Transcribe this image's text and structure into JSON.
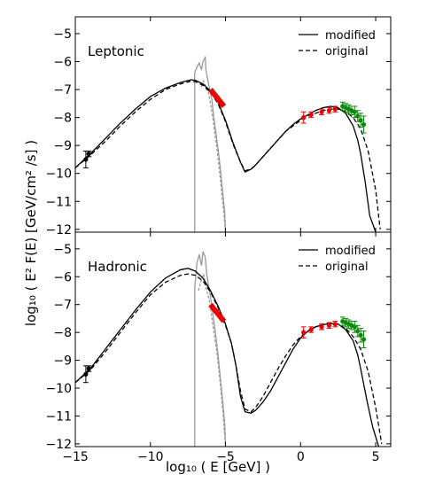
{
  "y_axis_label": "log₁₀ ( E² F(E) [GeV/cm² /s] )",
  "x_axis_label": "log₁₀ ( E [GeV] )",
  "x_ticks": [
    "−15",
    "−10",
    "−5",
    "0",
    "5"
  ],
  "panel_top_y_ticks": [
    "−5",
    "−6",
    "−7",
    "−8",
    "−9",
    "−10",
    "−11",
    "−12"
  ],
  "panel_bottom_y_ticks": [
    "−5",
    "−6",
    "−7",
    "−8",
    "−9",
    "−10",
    "−11",
    "−12"
  ],
  "chart_data": [
    {
      "type": "line",
      "panel_label": "Leptonic",
      "xlim": [
        -15,
        6
      ],
      "ylim": [
        -12.1,
        -4.4
      ],
      "legend_position": "top-right",
      "series": [
        {
          "name": "modified",
          "style": "solid",
          "x": [
            -15,
            -14,
            -13,
            -12,
            -11,
            -10,
            -9,
            -8,
            -7.3,
            -7,
            -6.5,
            -6,
            -5.5,
            -5,
            -4.5,
            -4,
            -3.7,
            -3.3,
            -3,
            -2.5,
            -2,
            -1.5,
            -1,
            -0.5,
            0,
            0.5,
            1,
            1.5,
            2,
            2.5,
            3,
            3.5,
            3.8,
            4,
            4.3,
            4.6,
            5
          ],
          "y": [
            -9.8,
            -9.3,
            -8.75,
            -8.2,
            -7.7,
            -7.25,
            -6.95,
            -6.75,
            -6.65,
            -6.67,
            -6.8,
            -7.05,
            -7.45,
            -8.1,
            -8.9,
            -9.6,
            -9.95,
            -9.85,
            -9.7,
            -9.4,
            -9.1,
            -8.8,
            -8.5,
            -8.25,
            -8.05,
            -7.9,
            -7.75,
            -7.65,
            -7.6,
            -7.65,
            -7.85,
            -8.3,
            -8.8,
            -9.3,
            -10.3,
            -11.5,
            -12.1
          ]
        },
        {
          "name": "original",
          "style": "dashed",
          "x": [
            -15,
            -14,
            -13,
            -12,
            -11,
            -10,
            -9,
            -8,
            -7.3,
            -7,
            -6.5,
            -6,
            -5.5,
            -5,
            -4.5,
            -4,
            -3.7,
            -3.3,
            -3,
            -2.5,
            -2,
            -1.5,
            -1,
            -0.5,
            0,
            0.5,
            1,
            1.5,
            2,
            2.5,
            3,
            3.5,
            4,
            4.5,
            5,
            5.3
          ],
          "y": [
            -9.8,
            -9.35,
            -8.85,
            -8.3,
            -7.8,
            -7.35,
            -7.0,
            -6.8,
            -6.7,
            -6.72,
            -6.85,
            -7.1,
            -7.5,
            -8.15,
            -8.95,
            -9.6,
            -9.9,
            -9.85,
            -9.7,
            -9.4,
            -9.1,
            -8.8,
            -8.5,
            -8.3,
            -8.1,
            -7.95,
            -7.85,
            -7.75,
            -7.7,
            -7.7,
            -7.8,
            -8.0,
            -8.4,
            -9.2,
            -10.6,
            -12.0
          ]
        }
      ],
      "optical_rays": [
        {
          "x": [
            -7.05,
            -7.05,
            -6.9,
            -6.75,
            -6.6,
            -6.5,
            -6.35,
            -6.3,
            -6.2,
            -6.05,
            -5.9,
            -5.8,
            -5.65,
            -5.5,
            -5.35,
            -5.2,
            -5.05,
            -5.0
          ],
          "y": [
            -12.1,
            -6.4,
            -6.2,
            -6.05,
            -6.3,
            -6.0,
            -5.85,
            -6.3,
            -6.6,
            -7.0,
            -7.4,
            -7.9,
            -8.5,
            -9.1,
            -9.8,
            -10.6,
            -11.4,
            -12.1
          ]
        },
        {
          "x": [
            -6.6,
            -6.45,
            -6.3,
            -6.15,
            -6.0,
            -5.85,
            -5.7,
            -5.55,
            -5.4,
            -5.25,
            -5.1,
            -5.0
          ],
          "y": [
            -6.9,
            -6.7,
            -6.95,
            -7.1,
            -7.5,
            -8.0,
            -8.6,
            -9.2,
            -9.9,
            -10.7,
            -11.5,
            -12.1
          ]
        }
      ],
      "data_groups": [
        {
          "color": "#000000",
          "x": [
            -14.3,
            -14.1
          ],
          "y": [
            -9.5,
            -9.3
          ],
          "err": [
            0.3,
            0.1
          ]
        },
        {
          "color": "#ee0000",
          "x": [
            0.2,
            0.7,
            1.4,
            1.9,
            2.3
          ],
          "y": [
            -8.0,
            -7.9,
            -7.8,
            -7.75,
            -7.7
          ],
          "err": [
            0.2,
            0.1,
            0.1,
            0.1,
            0.1
          ]
        },
        {
          "color": "#0b8a0b",
          "x": [
            2.8,
            3.0,
            3.2,
            3.4,
            3.6,
            3.8,
            4.0,
            4.2
          ],
          "y": [
            -7.6,
            -7.65,
            -7.7,
            -7.75,
            -7.8,
            -7.95,
            -8.1,
            -8.25
          ],
          "err": [
            0.15,
            0.15,
            0.15,
            0.15,
            0.2,
            0.2,
            0.25,
            0.3
          ]
        }
      ],
      "xray_bowtie": {
        "x": [
          -6.0,
          -5.1
        ],
        "y": [
          -7.0,
          -7.6
        ]
      }
    },
    {
      "type": "line",
      "panel_label": "Hadronic",
      "xlim": [
        -15,
        6
      ],
      "ylim": [
        -12.1,
        -4.4
      ],
      "legend_position": "top-right",
      "series": [
        {
          "name": "modified",
          "style": "solid",
          "x": [
            -15,
            -14,
            -13,
            -12,
            -11,
            -10,
            -9,
            -8,
            -7.5,
            -7,
            -6.5,
            -6,
            -5.5,
            -5,
            -4.6,
            -4.3,
            -4,
            -3.7,
            -3.3,
            -3,
            -2.5,
            -2,
            -1.5,
            -1,
            -0.5,
            0,
            0.5,
            1,
            1.5,
            2,
            2.5,
            3,
            3.5,
            3.8,
            4,
            4.4,
            4.8,
            5.2
          ],
          "y": [
            -9.8,
            -9.3,
            -8.6,
            -7.9,
            -7.2,
            -6.55,
            -6.05,
            -5.75,
            -5.7,
            -5.8,
            -6.05,
            -6.5,
            -7.05,
            -7.7,
            -8.4,
            -9.2,
            -10.3,
            -10.85,
            -10.9,
            -10.8,
            -10.5,
            -10.1,
            -9.6,
            -9.1,
            -8.6,
            -8.2,
            -7.95,
            -7.8,
            -7.72,
            -7.68,
            -7.7,
            -7.9,
            -8.3,
            -8.8,
            -9.3,
            -10.4,
            -11.4,
            -12.1
          ]
        },
        {
          "name": "original",
          "style": "dashed",
          "x": [
            -15,
            -14,
            -13,
            -12,
            -11,
            -10,
            -9,
            -8,
            -7.5,
            -7,
            -6.5,
            -6,
            -5.5,
            -5,
            -4.6,
            -4.3,
            -4,
            -3.7,
            -3.3,
            -3,
            -2.5,
            -2,
            -1.5,
            -1,
            -0.5,
            0,
            0.5,
            1,
            1.5,
            2,
            2.5,
            3,
            3.5,
            4,
            4.5,
            5,
            5.4
          ],
          "y": [
            -9.8,
            -9.35,
            -8.7,
            -8.0,
            -7.3,
            -6.65,
            -6.2,
            -5.95,
            -5.9,
            -5.95,
            -6.15,
            -6.55,
            -7.1,
            -7.75,
            -8.4,
            -9.2,
            -10.1,
            -10.75,
            -10.85,
            -10.7,
            -10.3,
            -9.8,
            -9.3,
            -8.85,
            -8.45,
            -8.15,
            -7.95,
            -7.8,
            -7.7,
            -7.65,
            -7.7,
            -7.85,
            -8.15,
            -8.6,
            -9.4,
            -10.7,
            -12.0
          ]
        }
      ],
      "optical_rays": [
        {
          "x": [
            -7.05,
            -7.05,
            -6.9,
            -6.75,
            -6.6,
            -6.5,
            -6.35,
            -6.25,
            -6.1,
            -5.95,
            -5.8,
            -5.65,
            -5.5,
            -5.35,
            -5.2,
            -5.05,
            -5.0
          ],
          "y": [
            -12.1,
            -6.4,
            -5.5,
            -5.2,
            -5.6,
            -5.1,
            -5.3,
            -5.9,
            -6.4,
            -6.9,
            -7.5,
            -8.1,
            -8.8,
            -9.6,
            -10.4,
            -11.3,
            -12.1
          ]
        },
        {
          "x": [
            -6.8,
            -6.6,
            -6.45,
            -6.3,
            -6.1,
            -5.95,
            -5.8,
            -5.6,
            -5.45,
            -5.3,
            -5.15,
            -5.0
          ],
          "y": [
            -6.5,
            -6.1,
            -5.9,
            -6.4,
            -6.8,
            -7.3,
            -7.9,
            -8.6,
            -9.3,
            -10.1,
            -11.0,
            -12.1
          ]
        }
      ],
      "data_groups": [
        {
          "color": "#000000",
          "x": [
            -14.3,
            -14.1
          ],
          "y": [
            -9.5,
            -9.3
          ],
          "err": [
            0.3,
            0.1
          ]
        },
        {
          "color": "#ee0000",
          "x": [
            0.2,
            0.7,
            1.4,
            1.9,
            2.3
          ],
          "y": [
            -8.0,
            -7.9,
            -7.8,
            -7.75,
            -7.7
          ],
          "err": [
            0.2,
            0.1,
            0.1,
            0.1,
            0.1
          ]
        },
        {
          "color": "#0b8a0b",
          "x": [
            2.8,
            3.0,
            3.2,
            3.4,
            3.6,
            3.8,
            4.0,
            4.2
          ],
          "y": [
            -7.6,
            -7.65,
            -7.7,
            -7.75,
            -7.8,
            -7.95,
            -8.1,
            -8.25
          ],
          "err": [
            0.15,
            0.15,
            0.15,
            0.15,
            0.2,
            0.2,
            0.25,
            0.3
          ]
        }
      ],
      "xray_bowtie": {
        "x": [
          -6.0,
          -5.1
        ],
        "y": [
          -7.0,
          -7.6
        ]
      }
    }
  ]
}
